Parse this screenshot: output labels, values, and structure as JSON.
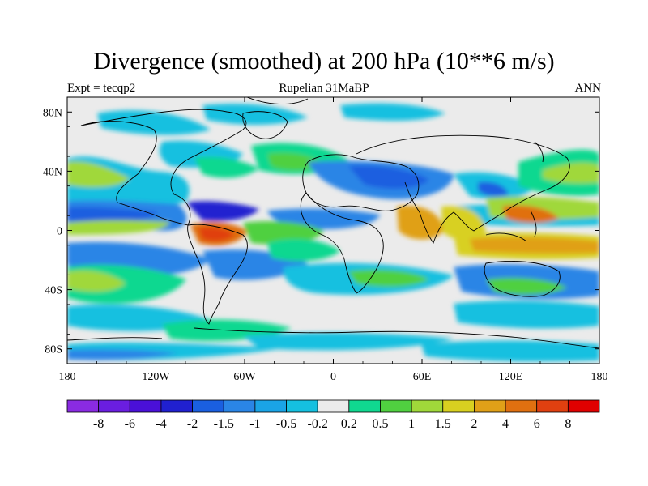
{
  "title": "Divergence (smoothed) at 200 hPa (10**6 m/s)",
  "subtitle_left": "Expt = tecqp2",
  "subtitle_center": "Rupelian  31MaBP",
  "subtitle_right": "ANN",
  "x_ticks": [
    {
      "value": -180,
      "label": "180"
    },
    {
      "value": -120,
      "label": "120W"
    },
    {
      "value": -60,
      "label": "60W"
    },
    {
      "value": 0,
      "label": "0"
    },
    {
      "value": 60,
      "label": "60E"
    },
    {
      "value": 120,
      "label": "120E"
    },
    {
      "value": 180,
      "label": "180"
    }
  ],
  "y_ticks": [
    {
      "value": 80,
      "label": "80N"
    },
    {
      "value": 40,
      "label": "40N"
    },
    {
      "value": 0,
      "label": "0"
    },
    {
      "value": -40,
      "label": "40S"
    },
    {
      "value": -80,
      "label": "80S"
    }
  ],
  "colorbar": {
    "colors": [
      "#8a2be2",
      "#6a1ee0",
      "#4a10d8",
      "#2020d0",
      "#1a5fe0",
      "#2a85e6",
      "#1aa4e6",
      "#15c0e0",
      "#ebebeb",
      "#10d890",
      "#50d040",
      "#a0d83a",
      "#d8d020",
      "#e0a018",
      "#e07010",
      "#e04010",
      "#e00000"
    ],
    "labels": [
      "-8",
      "-6",
      "-4",
      "-2",
      "-1.5",
      "-1",
      "-0.5",
      "-0.2",
      "0.2",
      "0.5",
      "1",
      "1.5",
      "2",
      "4",
      "6",
      "8"
    ]
  },
  "map_data": {
    "x_range": [
      -180,
      180
    ],
    "y_range": [
      -90,
      90
    ],
    "background_color": "#ebebeb",
    "bands": [
      {
        "lat_top": 14,
        "lat_bottom": -2,
        "color": "#1a5fe0"
      },
      {
        "lat_top": 4,
        "lat_bottom": -10,
        "color": "#d8d020"
      }
    ]
  }
}
